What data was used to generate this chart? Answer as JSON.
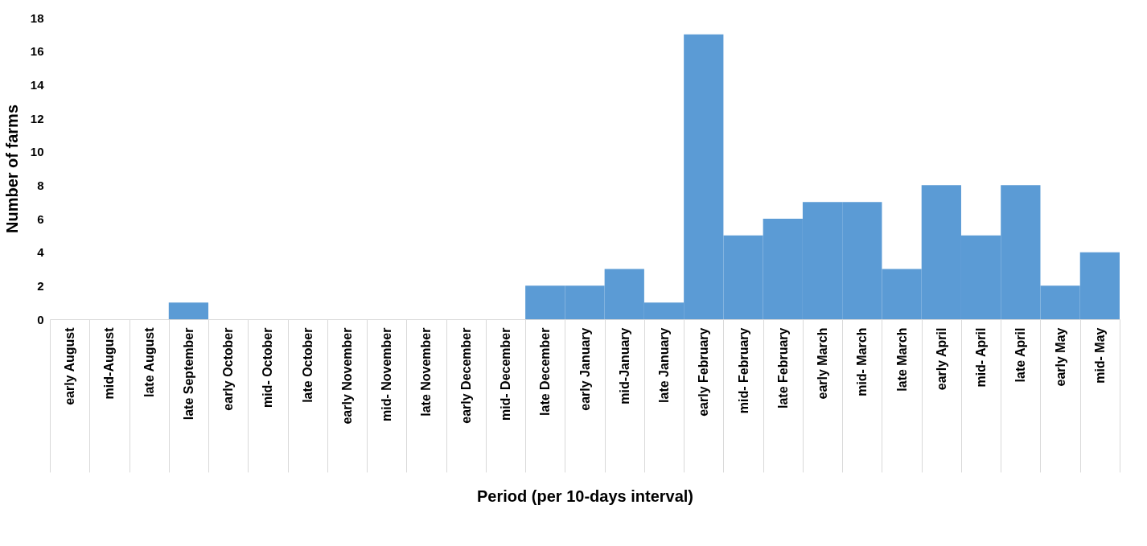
{
  "chart_data": {
    "type": "bar",
    "xlabel": "Period (per 10-days interval)",
    "ylabel": "Number of farms",
    "categories": [
      "early August",
      "mid-August",
      "late August",
      "late September",
      "early  October",
      "mid- October",
      "late October",
      "early  November",
      "mid- November",
      "late November",
      "early  December",
      "mid- December",
      "late December",
      "early January",
      "mid-January",
      "late January",
      "early February",
      "mid- February",
      "late February",
      "early  March",
      "mid- March",
      "late March",
      "early  April",
      "mid- April",
      "late April",
      "early  May",
      "mid- May"
    ],
    "values": [
      0,
      0,
      0,
      1,
      0,
      0,
      0,
      0,
      0,
      0,
      0,
      0,
      2,
      2,
      3,
      1,
      17,
      5,
      6,
      7,
      7,
      3,
      8,
      5,
      8,
      2,
      4
    ],
    "color": "#5b9bd5",
    "ylim": [
      0,
      18
    ],
    "yticks": [
      0,
      2,
      4,
      6,
      8,
      10,
      12,
      14,
      16,
      18
    ]
  }
}
